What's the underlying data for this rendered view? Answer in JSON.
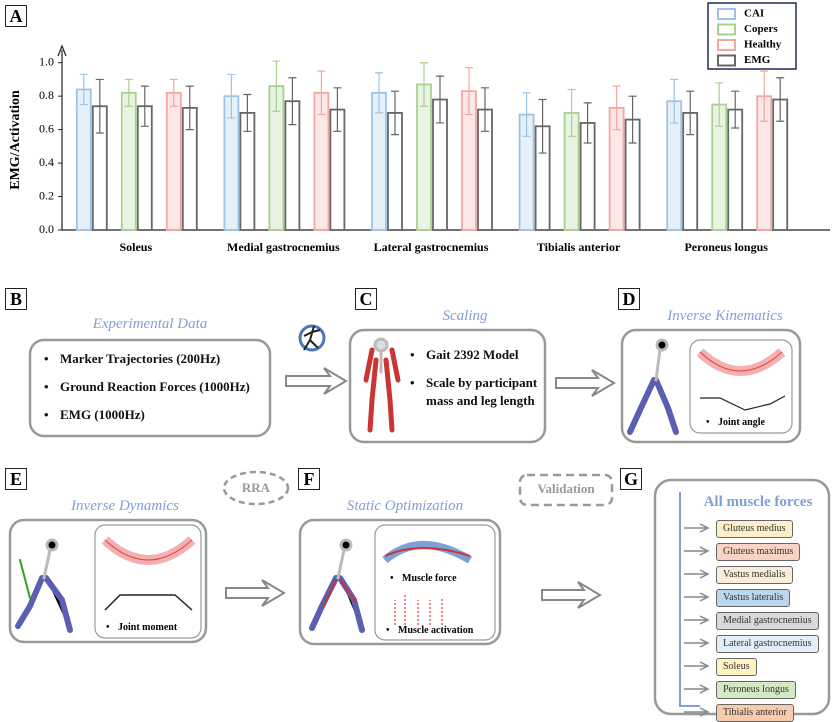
{
  "chart_data": {
    "type": "bar",
    "panel_label": "A",
    "y_label": "EMG/Activation",
    "categories": [
      "Soleus",
      "Medial gastrocnemius",
      "Lateral gastrocnemius",
      "Tibialis anterior",
      "Peroneus longus"
    ],
    "series": [
      {
        "name": "CAI",
        "color": "#9dc3e6",
        "values": [
          0.84,
          0.8,
          0.82,
          0.69,
          0.77
        ],
        "errors": [
          0.09,
          0.13,
          0.12,
          0.13,
          0.13
        ]
      },
      {
        "name": "Copers",
        "color": "#a9d18e",
        "values": [
          0.82,
          0.86,
          0.87,
          0.7,
          0.75
        ],
        "errors": [
          0.08,
          0.15,
          0.13,
          0.14,
          0.13
        ]
      },
      {
        "name": "Healthy",
        "color": "#f4a6a0",
        "values": [
          0.82,
          0.82,
          0.83,
          0.73,
          0.8
        ],
        "errors": [
          0.08,
          0.13,
          0.14,
          0.13,
          0.15
        ]
      },
      {
        "name": "EMG",
        "color": "#666666",
        "values": [
          [
            0.74,
            0.74,
            0.73
          ],
          [
            0.7,
            0.77,
            0.72
          ],
          [
            0.7,
            0.78,
            0.72
          ],
          [
            0.62,
            0.64,
            0.66
          ],
          [
            0.7,
            0.72,
            0.78
          ]
        ],
        "errors": [
          [
            0.16,
            0.12,
            0.13
          ],
          [
            0.11,
            0.14,
            0.13
          ],
          [
            0.13,
            0.14,
            0.13
          ],
          [
            0.16,
            0.12,
            0.14
          ],
          [
            0.13,
            0.11,
            0.13
          ]
        ]
      }
    ],
    "ylim": [
      0,
      1.1
    ],
    "yticks": [
      {
        "value": 0,
        "label": "0.0"
      },
      0.2,
      0.4,
      0.6,
      0.8,
      {
        "value": 1,
        "label": "1.0"
      }
    ]
  },
  "panels": {
    "B": {
      "label": "B",
      "title": "Experimental Data",
      "items": [
        "Marker Trajectories (200Hz)",
        "Ground Reaction Forces (1000Hz)",
        "EMG (1000Hz)"
      ]
    },
    "C": {
      "label": "C",
      "title": "Scaling",
      "items": [
        "Gait 2392 Model",
        "Scale by participant mass and leg length"
      ]
    },
    "D": {
      "label": "D",
      "title": "Inverse Kinematics",
      "captions": [
        "Joint angle"
      ]
    },
    "E": {
      "label": "E",
      "title": "Inverse Dynamics",
      "captions": [
        "Joint moment"
      ]
    },
    "F": {
      "label": "F",
      "title": "Static Optimization",
      "captions": [
        "Muscle force",
        "Muscle activation"
      ]
    },
    "G": {
      "label": "G",
      "title": "All muscle forces",
      "items": [
        "Gluteus medius",
        "Gluteus maximus",
        "Vastus medialis",
        "Vastus lateralis",
        "Medial gastrocnemius",
        "Lateral gastrocnemius",
        "Soleus",
        "Peroneus longus",
        "Tibialis anterior"
      ]
    }
  },
  "steps": [
    "RRA",
    "Validation"
  ]
}
